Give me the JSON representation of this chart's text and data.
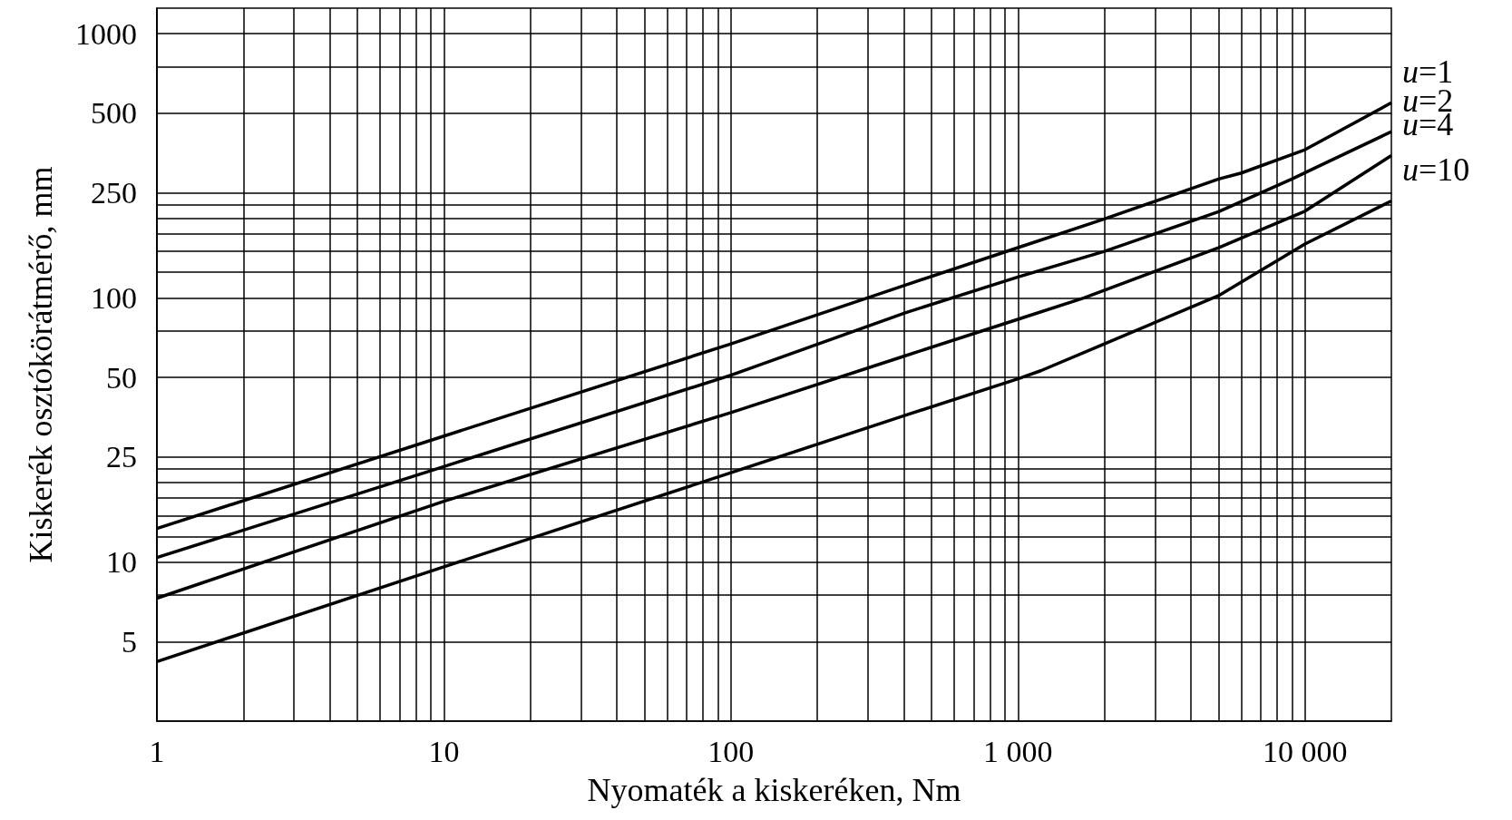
{
  "chart_data": {
    "type": "line",
    "xlabel": "Nyomaték a kiskeréken, Nm",
    "ylabel": "Kiskerék osztókörátmérő, mm",
    "log": "xy",
    "grid": true,
    "legend": false,
    "marker": "none",
    "line_style": "solid",
    "xlim": [
      1,
      20000
    ],
    "ylim": [
      2.5,
      1250
    ],
    "xticks": [
      1,
      {
        "value": 2,
        "label": null
      },
      {
        "value": 3,
        "label": null
      },
      {
        "value": 4,
        "label": null
      },
      {
        "value": 5,
        "label": null
      },
      {
        "value": 6,
        "label": null
      },
      {
        "value": 7,
        "label": null
      },
      {
        "value": 8,
        "label": null
      },
      {
        "value": 9,
        "label": null
      },
      10,
      {
        "value": 20,
        "label": null
      },
      {
        "value": 30,
        "label": null
      },
      {
        "value": 40,
        "label": null
      },
      {
        "value": 50,
        "label": null
      },
      {
        "value": 60,
        "label": null
      },
      {
        "value": 70,
        "label": null
      },
      {
        "value": 80,
        "label": null
      },
      {
        "value": 90,
        "label": null
      },
      100,
      {
        "value": 200,
        "label": null
      },
      {
        "value": 300,
        "label": null
      },
      {
        "value": 400,
        "label": null
      },
      {
        "value": 500,
        "label": null
      },
      {
        "value": 600,
        "label": null
      },
      {
        "value": 700,
        "label": null
      },
      {
        "value": 800,
        "label": null
      },
      {
        "value": 900,
        "label": null
      },
      {
        "value": 1000,
        "label": "1 000"
      },
      {
        "value": 2000,
        "label": null
      },
      {
        "value": 3000,
        "label": null
      },
      {
        "value": 4000,
        "label": null
      },
      {
        "value": 5000,
        "label": null
      },
      {
        "value": 6000,
        "label": null
      },
      {
        "value": 7000,
        "label": null
      },
      {
        "value": 8000,
        "label": null
      },
      {
        "value": 9000,
        "label": null
      },
      {
        "value": 10000,
        "label": "10 000"
      }
    ],
    "yticks": [
      5,
      {
        "value": 7.5,
        "label": null
      },
      10,
      {
        "value": 12.5,
        "label": null
      },
      {
        "value": 15,
        "label": null
      },
      {
        "value": 17.5,
        "label": null
      },
      {
        "value": 20,
        "label": null
      },
      {
        "value": 22.5,
        "label": null
      },
      25,
      50,
      {
        "value": 75,
        "label": null
      },
      100,
      {
        "value": 125,
        "label": null
      },
      {
        "value": 150,
        "label": null
      },
      {
        "value": 175,
        "label": null
      },
      {
        "value": 200,
        "label": null
      },
      {
        "value": 225,
        "label": null
      },
      250,
      500,
      {
        "value": 750,
        "label": null
      },
      1000
    ],
    "series": [
      {
        "name": "u=1",
        "color": "#000000",
        "x": [
          1,
          10,
          100,
          407,
          1000,
          2000,
          5000,
          6000,
          10000,
          20000
        ],
        "values": [
          13.4,
          30,
          67,
          112,
          155,
          199,
          282,
          297,
          364,
          548
        ]
      },
      {
        "name": "u=2",
        "color": "#000000",
        "x": [
          1,
          10,
          100,
          407,
          1000,
          2000,
          5000,
          9000,
          10800,
          20000
        ],
        "values": [
          10.4,
          23,
          51,
          88,
          120,
          150,
          212,
          282,
          310,
          426
        ]
      },
      {
        "name": "u=4",
        "color": "#000000",
        "x": [
          1,
          10,
          100,
          407,
          1000,
          1700,
          5000,
          10000,
          20000
        ],
        "values": [
          7.3,
          17,
          36.8,
          60.5,
          83,
          100,
          155,
          213,
          346
        ]
      },
      {
        "name": "u=10",
        "color": "#000000",
        "x": [
          1,
          10,
          100,
          407,
          1000,
          1200,
          2000,
          5000,
          10000,
          20000
        ],
        "values": [
          4.2,
          9.6,
          21.8,
          36,
          49.4,
          53,
          67,
          102,
          160,
          233
        ]
      }
    ]
  }
}
